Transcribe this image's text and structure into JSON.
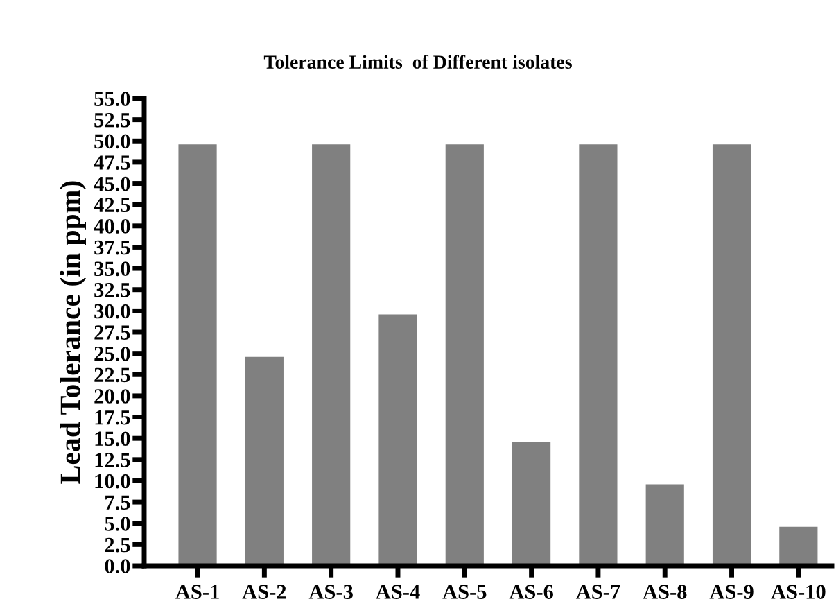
{
  "chart_data": {
    "type": "bar",
    "title": "Tolerance Limits  of Different isolates",
    "ylabel": "Lead Tolerance (in ppm)",
    "categories": [
      "AS-1",
      "AS-2",
      "AS-3",
      "AS-4",
      "AS-5",
      "AS-6",
      "AS-7",
      "AS-8",
      "AS-9",
      "AS-10"
    ],
    "values": [
      49.5,
      24.5,
      49.5,
      29.5,
      49.5,
      14.5,
      49.5,
      9.5,
      49.5,
      4.5
    ],
    "color": "#808080",
    "ylim": [
      0,
      55
    ],
    "yticks": [
      {
        "value": 0,
        "label": "0.0"
      },
      {
        "value": 2.5,
        "label": "2.5"
      },
      {
        "value": 5,
        "label": "5.0"
      },
      {
        "value": 7.5,
        "label": "7.5"
      },
      {
        "value": 10,
        "label": "10.0"
      },
      {
        "value": 12.5,
        "label": "12.5"
      },
      {
        "value": 15,
        "label": "15.0"
      },
      {
        "value": 17.5,
        "label": "17.5"
      },
      {
        "value": 20,
        "label": "20.0"
      },
      {
        "value": 22.5,
        "label": "22.5"
      },
      {
        "value": 25,
        "label": "25.0"
      },
      {
        "value": 27.5,
        "label": "27.5"
      },
      {
        "value": 30,
        "label": "30.0"
      },
      {
        "value": 32.5,
        "label": "32.5"
      },
      {
        "value": 35,
        "label": "35.0"
      },
      {
        "value": 37.5,
        "label": "37.5"
      },
      {
        "value": 40,
        "label": "40.0"
      },
      {
        "value": 42.5,
        "label": "42.5"
      },
      {
        "value": 45,
        "label": "45.0"
      },
      {
        "value": 47.5,
        "label": "47.5"
      },
      {
        "value": 50,
        "label": "50.0"
      },
      {
        "value": 52.5,
        "label": "52.5"
      },
      {
        "value": 55,
        "label": "55.0"
      }
    ],
    "grid": false,
    "legend": false
  }
}
